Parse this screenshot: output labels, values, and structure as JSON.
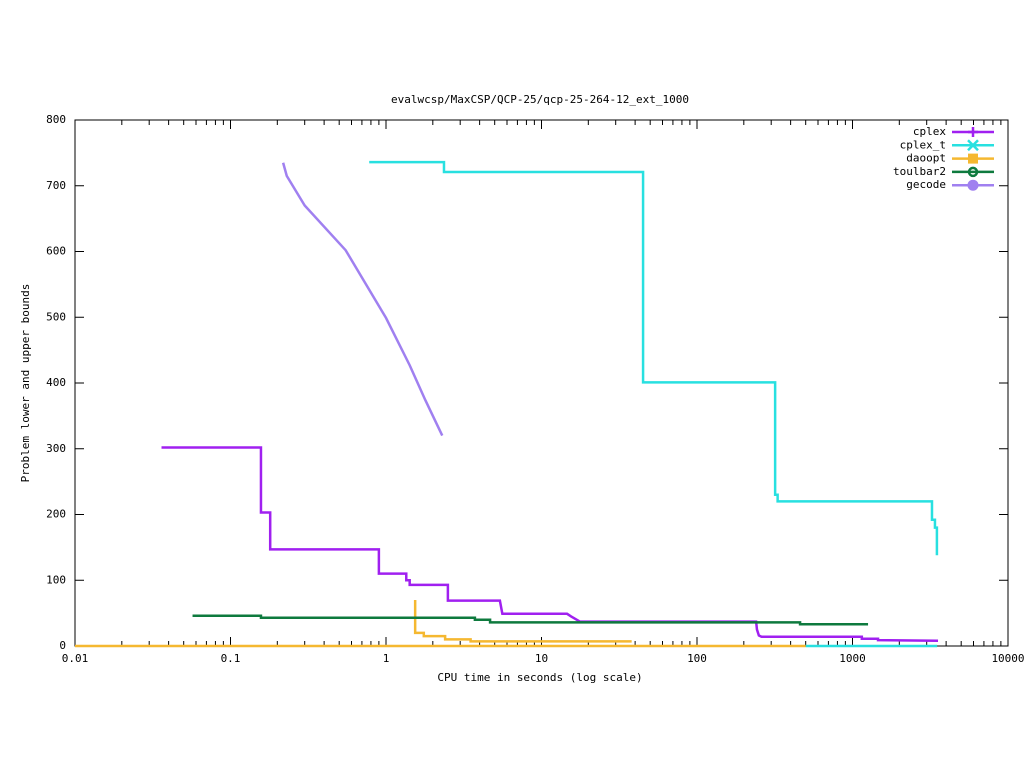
{
  "chart_data": {
    "type": "line",
    "title": "evalwcsp/MaxCSP/QCP-25/qcp-25-264-12_ext_1000",
    "x_label": "CPU time in seconds (log scale)",
    "y_label": "Problem lower and upper bounds",
    "x_scale": "log",
    "xlim": [
      0.01,
      10000
    ],
    "xticks": [
      0.01,
      0.1,
      1,
      10,
      100,
      1000,
      10000
    ],
    "ylim": [
      0,
      800
    ],
    "yticks": [
      0,
      100,
      200,
      300,
      400,
      500,
      600,
      700,
      800
    ],
    "legend": "top-right",
    "series": [
      {
        "name": "cplex",
        "color": "#a020f0",
        "marker": "plus",
        "x": [
          0.036,
          0.157,
          0.157,
          0.18,
          0.18,
          0.9,
          0.9,
          1.35,
          1.35,
          1.42,
          1.42,
          2.5,
          2.5,
          5.4,
          5.6,
          14.6,
          15.5,
          17.7,
          240,
          243,
          250,
          260,
          1148,
          1148,
          1459,
          1459,
          3548
        ],
        "values": [
          302,
          302,
          203,
          203,
          147,
          147,
          110,
          110,
          100,
          100,
          93,
          93,
          69,
          69,
          49,
          49,
          45,
          37,
          37,
          25,
          16,
          14,
          14,
          11,
          11,
          9,
          8
        ]
      },
      {
        "name": "cplex_t",
        "color": "#28e0e0",
        "marker": "cross",
        "x": [
          0.78,
          2.36,
          2.36,
          45,
          45,
          318,
          318,
          330,
          330,
          3245,
          3245,
          3390,
          3390,
          3490,
          3490,
          null,
          500,
          3500
        ],
        "values": [
          736,
          736,
          721,
          721,
          401,
          401,
          230,
          230,
          220,
          220,
          192,
          192,
          180,
          180,
          138,
          null,
          0,
          0
        ]
      },
      {
        "name": "daoopt",
        "color": "#f5b830",
        "marker": "square",
        "x": [
          0.01,
          500,
          null,
          1.54,
          1.54,
          1.75,
          1.75,
          2.4,
          2.4,
          3.5,
          3.5,
          38
        ],
        "values": [
          0,
          0,
          null,
          70,
          20,
          20,
          15,
          15,
          10,
          10,
          7,
          7
        ]
      },
      {
        "name": "toulbar2",
        "color": "#0e7a3e",
        "marker": "circle",
        "x": [
          0.057,
          0.157,
          0.157,
          3.73,
          3.73,
          4.67,
          4.67,
          460,
          460,
          1259
        ],
        "values": [
          46,
          46,
          43,
          43,
          40,
          40,
          36,
          36,
          33,
          33
        ]
      },
      {
        "name": "gecode",
        "color": "#a080f0",
        "marker": "filled-circle",
        "x": [
          0.218,
          0.23,
          0.3,
          0.55,
          1,
          1.42,
          1.79,
          2.3
        ],
        "values": [
          735,
          715,
          670,
          602,
          499,
          427,
          374,
          320
        ]
      }
    ]
  }
}
